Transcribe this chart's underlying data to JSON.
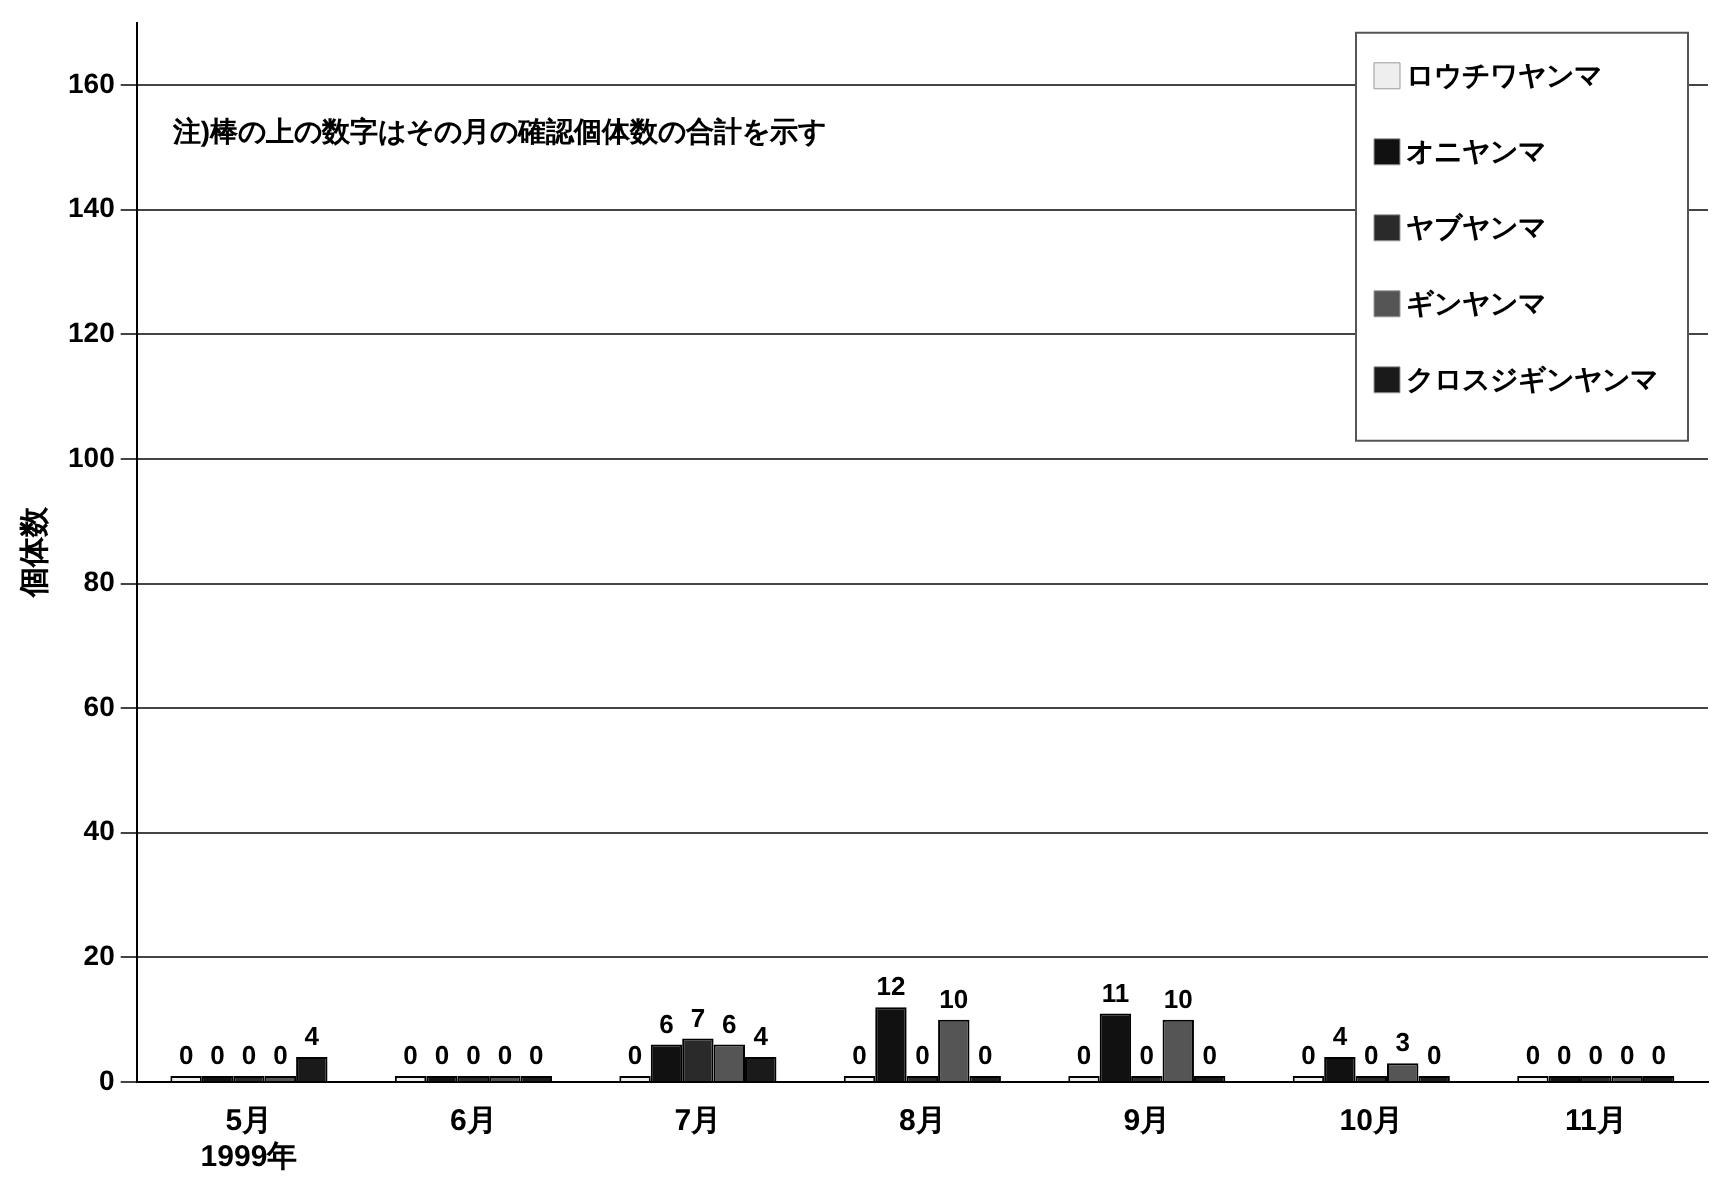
{
  "chart_data": {
    "type": "bar",
    "ylabel": "個体数",
    "categories": [
      "5月\n1999年",
      "6月",
      "7月",
      "8月",
      "9月",
      "10月",
      "11月"
    ],
    "series": [
      {
        "name": "ロウチワヤンマ",
        "color": "#eeeeee",
        "values": [
          0,
          0,
          0,
          0,
          0,
          0,
          0
        ]
      },
      {
        "name": "オニヤンマ",
        "color": "#111111",
        "values": [
          0,
          0,
          6,
          12,
          11,
          4,
          0
        ]
      },
      {
        "name": "ヤブヤンマ",
        "color": "#2a2a2a",
        "values": [
          0,
          0,
          7,
          0,
          0,
          0,
          0
        ]
      },
      {
        "name": "ギンヤンマ",
        "color": "#555555",
        "values": [
          0,
          0,
          6,
          10,
          10,
          3,
          0
        ]
      },
      {
        "name": "クロスジギンヤンマ",
        "color": "#1a1a1a",
        "values": [
          4,
          0,
          4,
          0,
          0,
          0,
          0
        ]
      }
    ],
    "ylim": [
      0,
      170
    ],
    "yticks": [
      0,
      20,
      40,
      60,
      80,
      100,
      120,
      140,
      160
    ],
    "grid": "y",
    "legend": "top right",
    "data_labels": true,
    "annotations": [
      "注)棒の上の数字はその月の確認個体数の合計を示す"
    ]
  }
}
